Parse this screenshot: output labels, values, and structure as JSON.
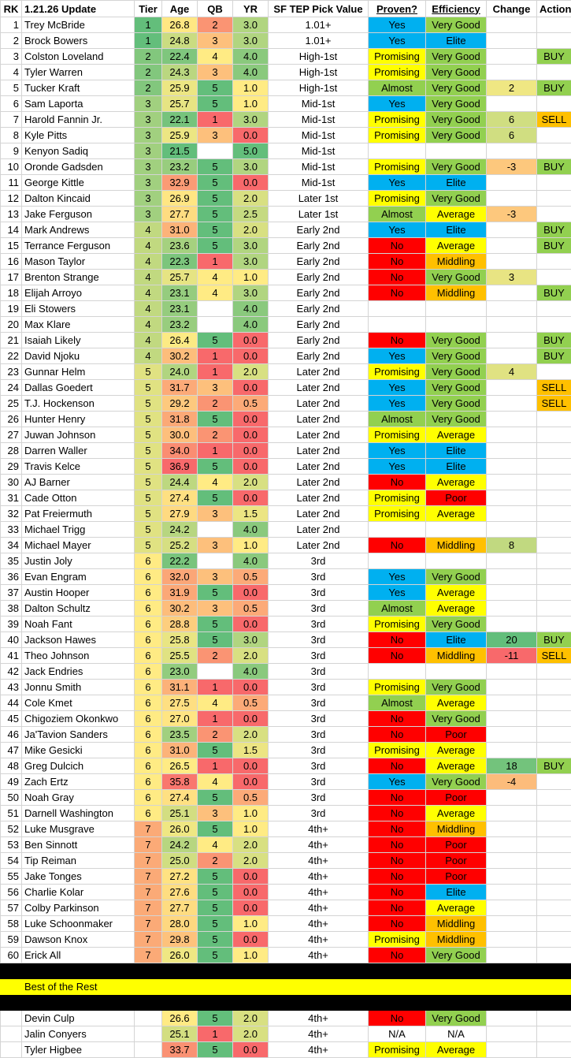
{
  "table": {
    "columns": [
      "RK",
      "1.21.26 Update",
      "Tier",
      "Age",
      "QB",
      "YR",
      "SF TEP Pick Value",
      "Proven?",
      "Efficiency",
      "Change",
      "Action"
    ],
    "rows": [
      [
        "1",
        "Trey McBride",
        "1",
        "26.8",
        "2",
        "3.0",
        "1.01+",
        "Yes",
        "Very Good",
        null,
        null
      ],
      [
        "2",
        "Brock Bowers",
        "1",
        "24.8",
        "3",
        "3.0",
        "1.01+",
        "Yes",
        "Elite",
        null,
        null
      ],
      [
        "3",
        "Colston Loveland",
        "2",
        "22.4",
        "4",
        "4.0",
        "High-1st",
        "Promising",
        "Very Good",
        null,
        "BUY"
      ],
      [
        "4",
        "Tyler Warren",
        "2",
        "24.3",
        "3",
        "4.0",
        "High-1st",
        "Promising",
        "Very Good",
        null,
        null
      ],
      [
        "5",
        "Tucker Kraft",
        "2",
        "25.9",
        "5",
        "1.0",
        "High-1st",
        "Almost",
        "Very Good",
        "2",
        "BUY"
      ],
      [
        "6",
        "Sam Laporta",
        "3",
        "25.7",
        "5",
        "1.0",
        "Mid-1st",
        "Yes",
        "Very Good",
        null,
        null
      ],
      [
        "7",
        "Harold Fannin Jr.",
        "3",
        "22.1",
        "1",
        "3.0",
        "Mid-1st",
        "Promising",
        "Very Good",
        "6",
        "SELL"
      ],
      [
        "8",
        "Kyle Pitts",
        "3",
        "25.9",
        "3",
        "0.0",
        "Mid-1st",
        "Promising",
        "Very Good",
        "6",
        null
      ],
      [
        "9",
        "Kenyon Sadiq",
        "3",
        "21.5",
        null,
        "5.0",
        "Mid-1st",
        null,
        null,
        null,
        null
      ],
      [
        "10",
        "Oronde Gadsden",
        "3",
        "23.2",
        "5",
        "3.0",
        "Mid-1st",
        "Promising",
        "Very Good",
        "-3",
        "BUY"
      ],
      [
        "11",
        "George Kittle",
        "3",
        "32.9",
        "5",
        "0.0",
        "Mid-1st",
        "Yes",
        "Elite",
        null,
        null
      ],
      [
        "12",
        "Dalton Kincaid",
        "3",
        "26.9",
        "5",
        "2.0",
        "Later 1st",
        "Promising",
        "Very Good",
        null,
        null
      ],
      [
        "13",
        "Jake Ferguson",
        "3",
        "27.7",
        "5",
        "2.5",
        "Later 1st",
        "Almost",
        "Average",
        "-3",
        null
      ],
      [
        "14",
        "Mark Andrews",
        "4",
        "31.0",
        "5",
        "2.0",
        "Early 2nd",
        "Yes",
        "Elite",
        null,
        "BUY"
      ],
      [
        "15",
        "Terrance Ferguson",
        "4",
        "23.6",
        "5",
        "3.0",
        "Early 2nd",
        "No",
        "Average",
        null,
        "BUY"
      ],
      [
        "16",
        "Mason Taylor",
        "4",
        "22.3",
        "1",
        "3.0",
        "Early 2nd",
        "No",
        "Middling",
        null,
        null
      ],
      [
        "17",
        "Brenton Strange",
        "4",
        "25.7",
        "4",
        "1.0",
        "Early 2nd",
        "No",
        "Very Good",
        "3",
        null
      ],
      [
        "18",
        "Elijah Arroyo",
        "4",
        "23.1",
        "4",
        "3.0",
        "Early 2nd",
        "No",
        "Middling",
        null,
        "BUY"
      ],
      [
        "19",
        "Eli Stowers",
        "4",
        "23.1",
        null,
        "4.0",
        "Early 2nd",
        null,
        null,
        null,
        null
      ],
      [
        "20",
        "Max Klare",
        "4",
        "23.2",
        null,
        "4.0",
        "Early 2nd",
        null,
        null,
        null,
        null
      ],
      [
        "21",
        "Isaiah Likely",
        "4",
        "26.4",
        "5",
        "0.0",
        "Early 2nd",
        "No",
        "Very Good",
        null,
        "BUY"
      ],
      [
        "22",
        "David Njoku",
        "4",
        "30.2",
        "1",
        "0.0",
        "Early 2nd",
        "Yes",
        "Very Good",
        null,
        "BUY"
      ],
      [
        "23",
        "Gunnar Helm",
        "5",
        "24.0",
        "1",
        "2.0",
        "Later 2nd",
        "Promising",
        "Very Good",
        "4",
        null
      ],
      [
        "24",
        "Dallas Goedert",
        "5",
        "31.7",
        "3",
        "0.0",
        "Later 2nd",
        "Yes",
        "Very Good",
        null,
        "SELL"
      ],
      [
        "25",
        "T.J. Hockenson",
        "5",
        "29.2",
        "2",
        "0.5",
        "Later 2nd",
        "Yes",
        "Very Good",
        null,
        "SELL"
      ],
      [
        "26",
        "Hunter Henry",
        "5",
        "31.8",
        "5",
        "0.0",
        "Later 2nd",
        "Almost",
        "Very Good",
        null,
        null
      ],
      [
        "27",
        "Juwan Johnson",
        "5",
        "30.0",
        "2",
        "0.0",
        "Later 2nd",
        "Promising",
        "Average",
        null,
        null
      ],
      [
        "28",
        "Darren Waller",
        "5",
        "34.0",
        "1",
        "0.0",
        "Later 2nd",
        "Yes",
        "Elite",
        null,
        null
      ],
      [
        "29",
        "Travis Kelce",
        "5",
        "36.9",
        "5",
        "0.0",
        "Later 2nd",
        "Yes",
        "Elite",
        null,
        null
      ],
      [
        "30",
        "AJ Barner",
        "5",
        "24.4",
        "4",
        "2.0",
        "Later 2nd",
        "No",
        "Average",
        null,
        null
      ],
      [
        "31",
        "Cade Otton",
        "5",
        "27.4",
        "5",
        "0.0",
        "Later 2nd",
        "Promising",
        "Poor",
        null,
        null
      ],
      [
        "32",
        "Pat Freiermuth",
        "5",
        "27.9",
        "3",
        "1.5",
        "Later 2nd",
        "Promising",
        "Average",
        null,
        null
      ],
      [
        "33",
        "Michael Trigg",
        "5",
        "24.2",
        null,
        "4.0",
        "Later 2nd",
        null,
        null,
        null,
        null
      ],
      [
        "34",
        "Michael Mayer",
        "5",
        "25.2",
        "3",
        "1.0",
        "Later 2nd",
        "No",
        "Middling",
        "8",
        null
      ],
      [
        "35",
        "Justin Joly",
        "6",
        "22.2",
        null,
        "4.0",
        "3rd",
        null,
        null,
        null,
        null
      ],
      [
        "36",
        "Evan Engram",
        "6",
        "32.0",
        "3",
        "0.5",
        "3rd",
        "Yes",
        "Very Good",
        null,
        null
      ],
      [
        "37",
        "Austin Hooper",
        "6",
        "31.9",
        "5",
        "0.0",
        "3rd",
        "Yes",
        "Average",
        null,
        null
      ],
      [
        "38",
        "Dalton Schultz",
        "6",
        "30.2",
        "3",
        "0.5",
        "3rd",
        "Almost",
        "Average",
        null,
        null
      ],
      [
        "39",
        "Noah Fant",
        "6",
        "28.8",
        "5",
        "0.0",
        "3rd",
        "Promising",
        "Very Good",
        null,
        null
      ],
      [
        "40",
        "Jackson Hawes",
        "6",
        "25.8",
        "5",
        "3.0",
        "3rd",
        "No",
        "Elite",
        "20",
        "BUY"
      ],
      [
        "41",
        "Theo Johnson",
        "6",
        "25.5",
        "2",
        "2.0",
        "3rd",
        "No",
        "Middling",
        "-11",
        "SELL"
      ],
      [
        "42",
        "Jack Endries",
        "6",
        "23.0",
        null,
        "4.0",
        "3rd",
        null,
        null,
        null,
        null
      ],
      [
        "43",
        "Jonnu Smith",
        "6",
        "31.1",
        "1",
        "0.0",
        "3rd",
        "Promising",
        "Very Good",
        null,
        null
      ],
      [
        "44",
        "Cole Kmet",
        "6",
        "27.5",
        "4",
        "0.5",
        "3rd",
        "Almost",
        "Average",
        null,
        null
      ],
      [
        "45",
        "Chigoziem Okonkwo",
        "6",
        "27.0",
        "1",
        "0.0",
        "3rd",
        "No",
        "Very Good",
        null,
        null
      ],
      [
        "46",
        "Ja'Tavion Sanders",
        "6",
        "23.5",
        "2",
        "2.0",
        "3rd",
        "No",
        "Poor",
        null,
        null
      ],
      [
        "47",
        "Mike Gesicki",
        "6",
        "31.0",
        "5",
        "1.5",
        "3rd",
        "Promising",
        "Average",
        null,
        null
      ],
      [
        "48",
        "Greg Dulcich",
        "6",
        "26.5",
        "1",
        "0.0",
        "3rd",
        "No",
        "Average",
        "18",
        "BUY"
      ],
      [
        "49",
        "Zach Ertz",
        "6",
        "35.8",
        "4",
        "0.0",
        "3rd",
        "Yes",
        "Very Good",
        "-4",
        null
      ],
      [
        "50",
        "Noah Gray",
        "6",
        "27.4",
        "5",
        "0.5",
        "3rd",
        "No",
        "Poor",
        null,
        null
      ],
      [
        "51",
        "Darnell Washington",
        "6",
        "25.1",
        "3",
        "1.0",
        "3rd",
        "No",
        "Average",
        null,
        null
      ],
      [
        "52",
        "Luke Musgrave",
        "7",
        "26.0",
        "5",
        "1.0",
        "4th+",
        "No",
        "Middling",
        null,
        null
      ],
      [
        "53",
        "Ben Sinnott",
        "7",
        "24.2",
        "4",
        "2.0",
        "4th+",
        "No",
        "Poor",
        null,
        null
      ],
      [
        "54",
        "Tip Reiman",
        "7",
        "25.0",
        "2",
        "2.0",
        "4th+",
        "No",
        "Poor",
        null,
        null
      ],
      [
        "55",
        "Jake Tonges",
        "7",
        "27.2",
        "5",
        "0.0",
        "4th+",
        "No",
        "Poor",
        null,
        null
      ],
      [
        "56",
        "Charlie Kolar",
        "7",
        "27.6",
        "5",
        "0.0",
        "4th+",
        "No",
        "Elite",
        null,
        null
      ],
      [
        "57",
        "Colby Parkinson",
        "7",
        "27.7",
        "5",
        "0.0",
        "4th+",
        "No",
        "Average",
        null,
        null
      ],
      [
        "58",
        "Luke Schoonmaker",
        "7",
        "28.0",
        "5",
        "1.0",
        "4th+",
        "No",
        "Middling",
        null,
        null
      ],
      [
        "59",
        "Dawson Knox",
        "7",
        "29.8",
        "5",
        "0.0",
        "4th+",
        "Promising",
        "Middling",
        null,
        null
      ],
      [
        "60",
        "Erick All",
        "7",
        "26.0",
        "5",
        "1.0",
        "4th+",
        "No",
        "Very Good",
        null,
        null
      ]
    ],
    "section_label": "Best of the Rest",
    "extra_rows": [
      [
        null,
        "Devin Culp",
        null,
        "26.6",
        "5",
        "2.0",
        "4th+",
        "No",
        "Very Good",
        null,
        null
      ],
      [
        null,
        "Jalin Conyers",
        null,
        "25.1",
        "1",
        "2.0",
        "4th+",
        "N/A",
        "N/A",
        null,
        null
      ],
      [
        null,
        "Tyler Higbee",
        null,
        "33.7",
        "5",
        "0.0",
        "4th+",
        "Promising",
        "Average",
        null,
        null
      ]
    ]
  },
  "styles": {
    "proven_colors": {
      "Yes": "#00b0f0",
      "Promising": "#ffff00",
      "Almost": "#92d050",
      "No": "#ff0000"
    },
    "efficiency_colors": {
      "Elite": "#00b0f0",
      "Very Good": "#92d050",
      "Average": "#ffff00",
      "Middling": "#ffc000",
      "Poor": "#ff0000"
    },
    "action_colors": {
      "BUY": "#92d050",
      "SELL": "#ffc000"
    },
    "rookie_name_color": "#92d050"
  }
}
